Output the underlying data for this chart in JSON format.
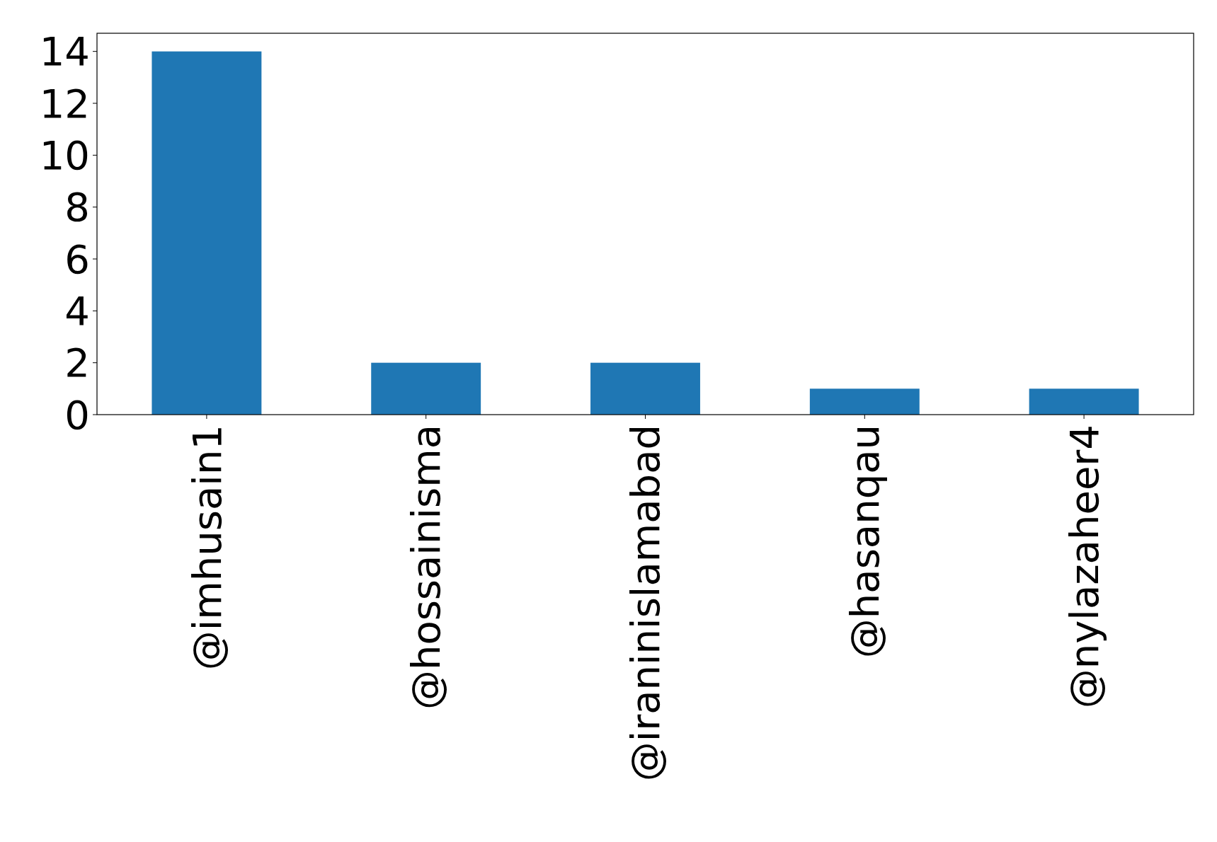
{
  "chart_data": {
    "type": "bar",
    "categories": [
      "@imhusain1",
      "@hossainisma",
      "@iraninislamabad",
      "@hasanqau",
      "@nylazaheer4"
    ],
    "values": [
      14,
      2,
      2,
      1,
      1
    ],
    "color": "#1f77b4",
    "ylim": [
      0,
      14.7
    ],
    "yticks": [
      0,
      2,
      4,
      6,
      8,
      10,
      12,
      14
    ],
    "grid": false
  }
}
